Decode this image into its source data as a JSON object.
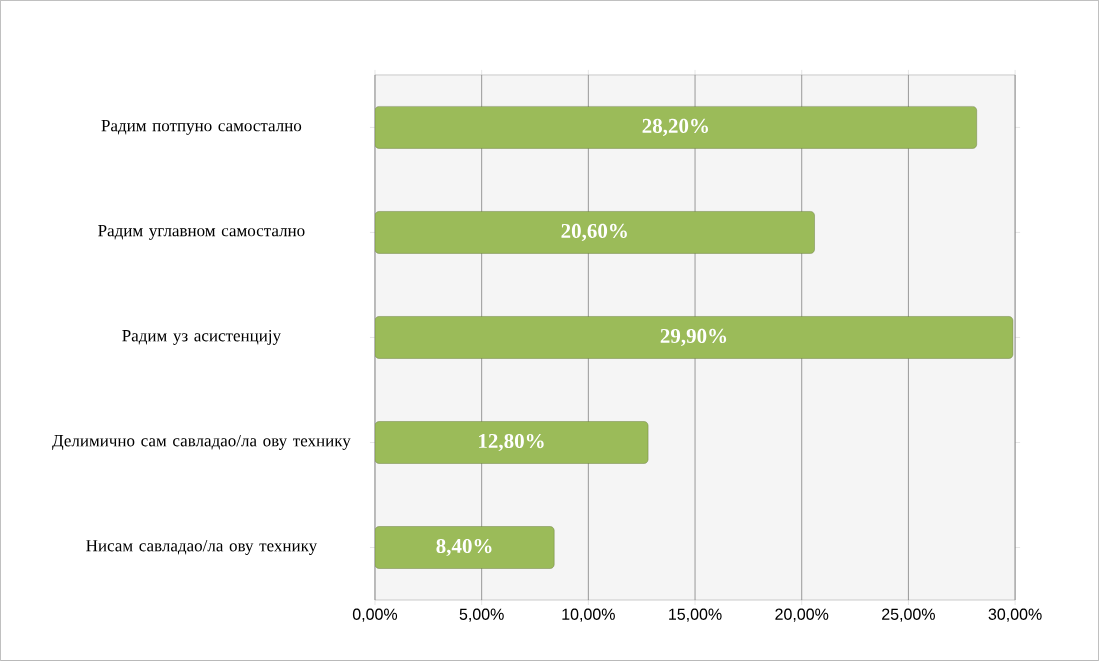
{
  "chart_data": {
    "type": "bar",
    "orientation": "horizontal",
    "categories": [
      "Радим потпуно самостално",
      "Радим углавном самостално",
      "Радим уз асистенцију",
      "Делимично сам савладао/ла ову технику",
      "Нисам савладао/ла ову технику"
    ],
    "values": [
      28.2,
      20.6,
      29.9,
      12.8,
      8.4
    ],
    "value_labels": [
      "28,20%",
      "20,60%",
      "29,90%",
      "12,80%",
      "8,40%"
    ],
    "color": "#9bbb59",
    "xlim": [
      0,
      30
    ],
    "xticks": [
      {
        "value": 0,
        "label": "0,00%"
      },
      {
        "value": 5,
        "label": "5,00%"
      },
      {
        "value": 10,
        "label": "10,00%"
      },
      {
        "value": 15,
        "label": "15,00%"
      },
      {
        "value": 20,
        "label": "20,00%"
      },
      {
        "value": 25,
        "label": "25,00%"
      },
      {
        "value": 30,
        "label": "30,00%"
      }
    ],
    "grid": "x"
  }
}
